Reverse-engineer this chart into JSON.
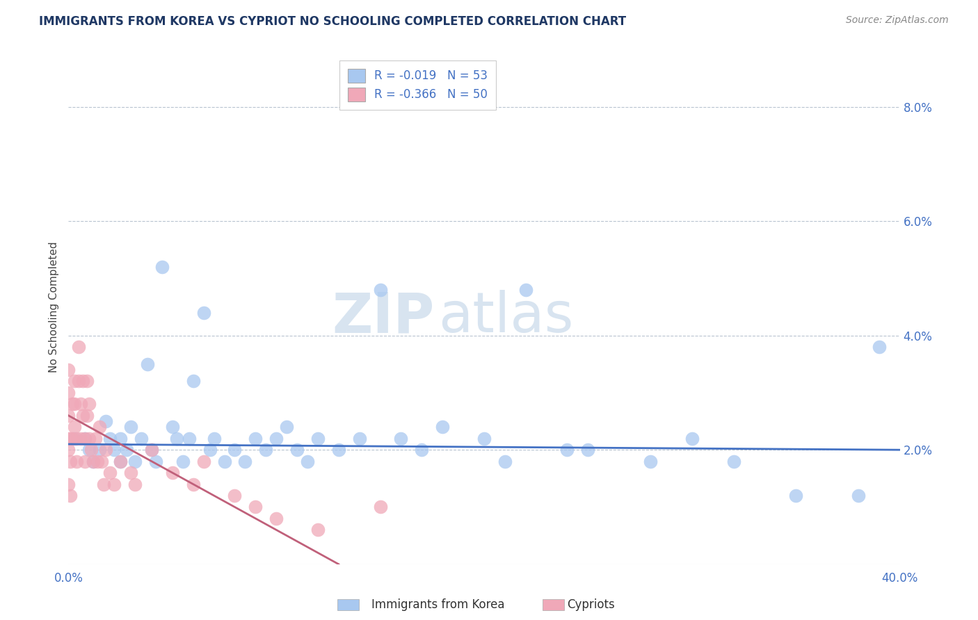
{
  "title": "IMMIGRANTS FROM KOREA VS CYPRIOT NO SCHOOLING COMPLETED CORRELATION CHART",
  "source": "Source: ZipAtlas.com",
  "xlabel_blue": "Immigrants from Korea",
  "xlabel_pink": "Cypriots",
  "ylabel": "No Schooling Completed",
  "xlim": [
    0.0,
    0.4
  ],
  "ylim": [
    0.0,
    0.09
  ],
  "xtick_positions": [
    0.0,
    0.05,
    0.1,
    0.15,
    0.2,
    0.25,
    0.3,
    0.35,
    0.4
  ],
  "ytick_positions": [
    0.0,
    0.02,
    0.04,
    0.06,
    0.08
  ],
  "legend_blue_r": "R = -0.019",
  "legend_blue_n": "N = 53",
  "legend_pink_r": "R = -0.366",
  "legend_pink_n": "N = 50",
  "blue_color": "#a8c8f0",
  "pink_color": "#f0a8b8",
  "blue_line_color": "#4472c4",
  "pink_line_color": "#c0607a",
  "title_color": "#1f3864",
  "tick_color": "#4472c4",
  "watermark_zip": "ZIP",
  "watermark_atlas": "atlas",
  "blue_scatter_x": [
    0.003,
    0.008,
    0.01,
    0.012,
    0.015,
    0.018,
    0.02,
    0.022,
    0.025,
    0.025,
    0.028,
    0.03,
    0.032,
    0.035,
    0.038,
    0.04,
    0.042,
    0.045,
    0.05,
    0.052,
    0.055,
    0.058,
    0.06,
    0.065,
    0.068,
    0.07,
    0.075,
    0.08,
    0.085,
    0.09,
    0.095,
    0.1,
    0.105,
    0.11,
    0.115,
    0.12,
    0.13,
    0.14,
    0.15,
    0.16,
    0.17,
    0.18,
    0.2,
    0.21,
    0.22,
    0.24,
    0.25,
    0.28,
    0.3,
    0.32,
    0.35,
    0.38,
    0.39
  ],
  "blue_scatter_y": [
    0.022,
    0.022,
    0.02,
    0.018,
    0.02,
    0.025,
    0.022,
    0.02,
    0.022,
    0.018,
    0.02,
    0.024,
    0.018,
    0.022,
    0.035,
    0.02,
    0.018,
    0.052,
    0.024,
    0.022,
    0.018,
    0.022,
    0.032,
    0.044,
    0.02,
    0.022,
    0.018,
    0.02,
    0.018,
    0.022,
    0.02,
    0.022,
    0.024,
    0.02,
    0.018,
    0.022,
    0.02,
    0.022,
    0.048,
    0.022,
    0.02,
    0.024,
    0.022,
    0.018,
    0.048,
    0.02,
    0.02,
    0.018,
    0.022,
    0.018,
    0.012,
    0.012,
    0.038
  ],
  "pink_scatter_x": [
    0.0,
    0.0,
    0.0,
    0.0,
    0.0,
    0.0,
    0.001,
    0.001,
    0.001,
    0.002,
    0.002,
    0.003,
    0.003,
    0.003,
    0.004,
    0.004,
    0.005,
    0.005,
    0.006,
    0.006,
    0.007,
    0.007,
    0.008,
    0.008,
    0.009,
    0.009,
    0.01,
    0.01,
    0.011,
    0.012,
    0.013,
    0.014,
    0.015,
    0.016,
    0.017,
    0.018,
    0.02,
    0.022,
    0.025,
    0.03,
    0.032,
    0.04,
    0.05,
    0.06,
    0.065,
    0.08,
    0.09,
    0.1,
    0.12,
    0.15
  ],
  "pink_scatter_y": [
    0.034,
    0.03,
    0.026,
    0.022,
    0.02,
    0.014,
    0.022,
    0.018,
    0.012,
    0.028,
    0.022,
    0.032,
    0.028,
    0.024,
    0.022,
    0.018,
    0.038,
    0.032,
    0.028,
    0.022,
    0.032,
    0.026,
    0.022,
    0.018,
    0.032,
    0.026,
    0.028,
    0.022,
    0.02,
    0.018,
    0.022,
    0.018,
    0.024,
    0.018,
    0.014,
    0.02,
    0.016,
    0.014,
    0.018,
    0.016,
    0.014,
    0.02,
    0.016,
    0.014,
    0.018,
    0.012,
    0.01,
    0.008,
    0.006,
    0.01
  ],
  "blue_line_x": [
    0.0,
    0.4
  ],
  "blue_line_y": [
    0.021,
    0.02
  ],
  "pink_line_x": [
    0.0,
    0.13
  ],
  "pink_line_y": [
    0.026,
    0.0
  ]
}
